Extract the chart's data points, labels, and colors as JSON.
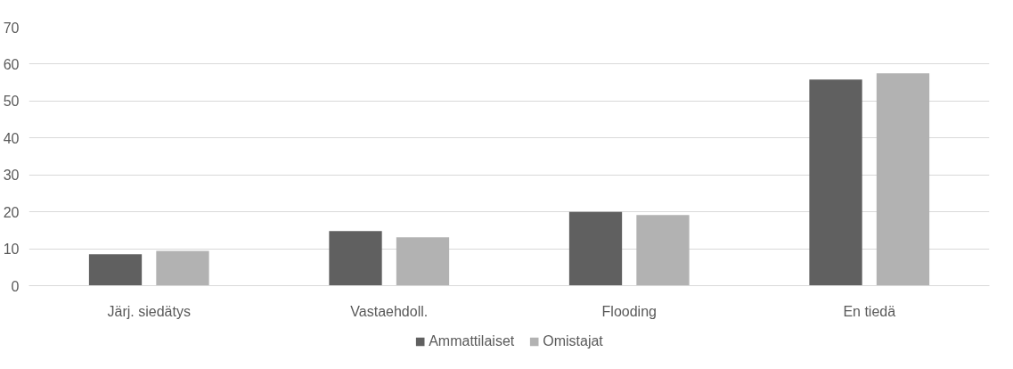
{
  "chart_data": {
    "type": "bar",
    "categories": [
      "Järj. siedätys",
      "Vastaehdoll.",
      "Flooding",
      "En tiedä"
    ],
    "series": [
      {
        "name": "Ammattilaiset",
        "color": "#606060",
        "values": [
          8.5,
          14.8,
          20.0,
          55.8
        ]
      },
      {
        "name": "Omistajat",
        "color": "#b2b2b2",
        "values": [
          9.4,
          13.1,
          19.1,
          57.5
        ]
      }
    ],
    "ylim": [
      0,
      70
    ],
    "yticks": [
      0,
      10,
      20,
      30,
      40,
      50,
      60,
      70
    ],
    "grid": "y",
    "legend": "bottom"
  }
}
